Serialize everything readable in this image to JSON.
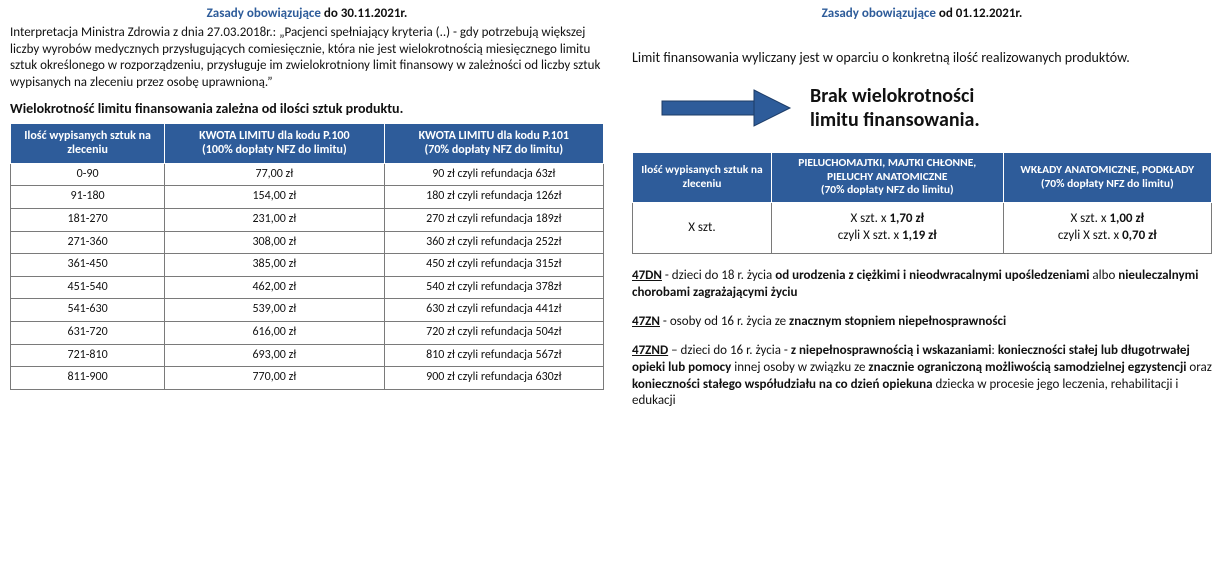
{
  "left": {
    "title_blue": "Zasady obowiązujące ",
    "title_black": "do 30.11.2021r.",
    "interpretation": "Interpretacja Ministra Zdrowia z dnia 27.03.2018r.: „Pacjenci spełniający kryteria (..) - gdy potrzebują większej liczby wyrobów medycznych przysługujących comiesięcznie, która nie jest wielokrotnością miesięcznego limitu sztuk określonego w rozporządzeniu, przysługuje im zwielokrotniony limit finansowy w zależności od liczby sztuk wypisanych na zleceniu przez osobę uprawnioną.”",
    "subheading": "Wielokrotność limitu finansowania zależna od ilości sztuk produktu.",
    "table": {
      "headers": [
        "Ilość wypisanych sztuk na zleceniu",
        "KWOTA LIMITU dla kodu P.100\n(100% dopłaty NFZ do limitu)",
        "KWOTA LIMITU dla kodu P.101\n(70% dopłaty NFZ do limitu)"
      ],
      "rows": [
        [
          "0-90",
          "77,00 zł",
          "90 zł czyli refundacja 63zł"
        ],
        [
          "91-180",
          "154,00 zł",
          "180 zł czyli refundacja 126zł"
        ],
        [
          "181-270",
          "231,00 zł",
          "270 zł czyli refundacja 189zł"
        ],
        [
          "271-360",
          "308,00 zł",
          "360 zł czyli refundacja 252zł"
        ],
        [
          "361-450",
          "385,00 zł",
          "450 zł czyli refundacja 315zł"
        ],
        [
          "451-540",
          "462,00 zł",
          "540 zł czyli refundacja 378zł"
        ],
        [
          "541-630",
          "539,00 zł",
          "630 zł czyli refundacja 441zł"
        ],
        [
          "631-720",
          "616,00 zł",
          "720 zł czyli refundacja 504zł"
        ],
        [
          "721-810",
          "693,00 zł",
          "810 zł czyli refundacja 567zł"
        ],
        [
          "811-900",
          "770,00 zł",
          "900 zł czyli refundacja 630zł"
        ]
      ],
      "col_widths": [
        "26%",
        "37%",
        "37%"
      ]
    }
  },
  "right": {
    "title_blue": "Zasady obowiązujące ",
    "title_black": "od 01.12.2021r.",
    "intro": "Limit finansowania wyliczany jest w oparciu o konkretną ilość realizowanych produktów.",
    "callout_line1": "Brak wielokrotności",
    "callout_line2": "limitu finansowania.",
    "arrow_color": "#2e5c9a",
    "table": {
      "headers": [
        "Ilość wypisanych sztuk na zleceniu",
        "PIELUCHOMAJTKI, MAJTKI CHŁONNE, PIELUCHY ANATOMICZNE\n(70% dopłaty NFZ do limitu)",
        "WKŁADY ANATOMICZNE, PODKŁADY\n(70% dopłaty NFZ do limitu)"
      ],
      "row": {
        "qty": "X szt.",
        "col2_l1": "X szt. x ",
        "col2_b1": "1,70 zł",
        "col2_l2": "czyli X szt. x ",
        "col2_b2": "1,19 zł",
        "col3_l1": "X szt. x ",
        "col3_b1": "1,00 zł",
        "col3_l2": "czyli X szt. x ",
        "col3_b2": "0,70 zł"
      },
      "col_widths": [
        "24%",
        "40%",
        "36%"
      ]
    },
    "defs": {
      "d47DN_code": "47DN",
      "d47DN_a": " - dzieci do 18 r. życia ",
      "d47DN_b1": "od urodzenia z ciężkimi i nieodwracalnymi  upośledzeniami",
      "d47DN_mid": " albo ",
      "d47DN_b2": "nieuleczalnymi chorobami zagrażającymi życiu",
      "d47ZN_code": "47ZN",
      "d47ZN_a": " - osoby od 16 r. życia ze ",
      "d47ZN_b": "znacznym stopniem niepełnosprawności",
      "d47ZND_code": "47ZND",
      "d47ZND_a": " – dzieci do 16 r. życia -  ",
      "d47ZND_b1": "z niepełnosprawnością i wskazaniami",
      "d47ZND_mid1": ": ",
      "d47ZND_b2": "konieczności stałej lub długotrwałej opieki lub pomocy",
      "d47ZND_mid2": " innej osoby w związku ze ",
      "d47ZND_b3": "znacznie ograniczoną możliwością samodzielnej egzystencji",
      "d47ZND_mid3": " oraz ",
      "d47ZND_b4": "konieczności stałego współudziału na co dzień opiekuna",
      "d47ZND_tail": " dziecka w procesie jego leczenia, rehabilitacji i edukacji"
    }
  }
}
